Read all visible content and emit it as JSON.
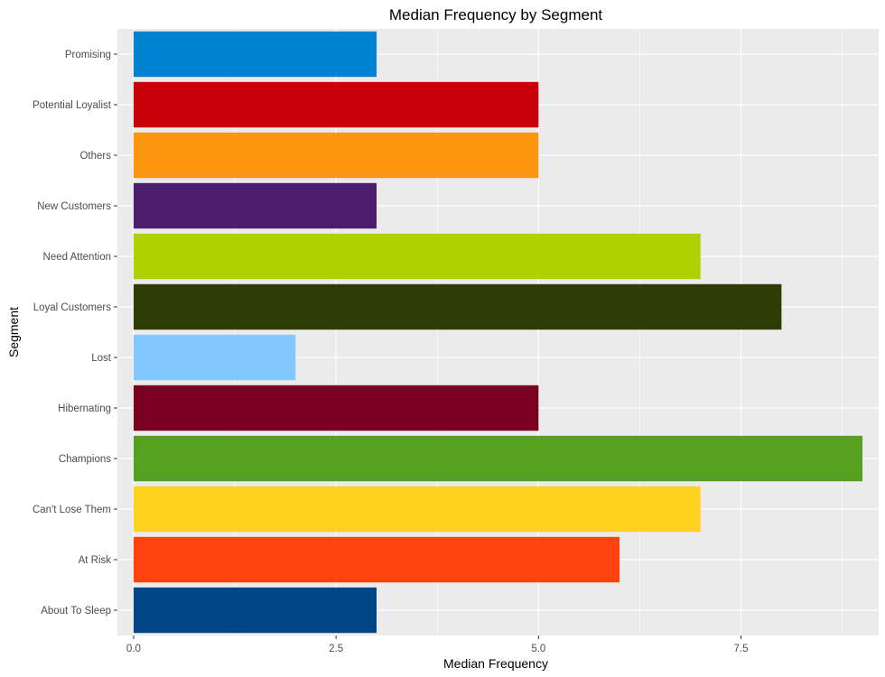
{
  "chart_data": {
    "type": "bar",
    "orientation": "horizontal",
    "title": "Median Frequency by Segment",
    "xlabel": "Median Frequency",
    "ylabel": "Segment",
    "xlim": [
      -0.2,
      9.2
    ],
    "x_ticks": [
      0,
      2.5,
      5,
      7.5
    ],
    "x_tick_labels": [
      "0.0",
      "2.5",
      "5.0",
      "7.5"
    ],
    "grid": true,
    "legend": "none",
    "categories": [
      "About To Sleep",
      "At Risk",
      "Can't Lose Them",
      "Champions",
      "Hibernating",
      "Lost",
      "Loyal Customers",
      "Need Attention",
      "New Customers",
      "Others",
      "Potential Loyalist",
      "Promising"
    ],
    "values": [
      3,
      6,
      7,
      9,
      5,
      2,
      8,
      7,
      3,
      5,
      5,
      3
    ],
    "colors": [
      "#004687",
      "#FF4210",
      "#FFD21F",
      "#55A01E",
      "#7A0020",
      "#82C8FF",
      "#2E3D03",
      "#AFD100",
      "#4B1E6E",
      "#FF9610",
      "#C8000A",
      "#0082D2"
    ],
    "panel_background": "#EBEBEB",
    "grid_color": "#FFFFFF"
  }
}
